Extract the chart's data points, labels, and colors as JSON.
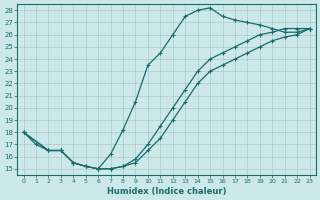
{
  "bg_color": "#cce8e8",
  "grid_color": "#aacccc",
  "line_color": "#1a6b6b",
  "xlabel": "Humidex (Indice chaleur)",
  "xlim": [
    -0.5,
    23.5
  ],
  "ylim": [
    14.5,
    28.5
  ],
  "xticks": [
    0,
    1,
    2,
    3,
    4,
    5,
    6,
    7,
    8,
    9,
    10,
    11,
    12,
    13,
    14,
    15,
    16,
    17,
    18,
    19,
    20,
    21,
    22,
    23
  ],
  "yticks": [
    15,
    16,
    17,
    18,
    19,
    20,
    21,
    22,
    23,
    24,
    25,
    26,
    27,
    28
  ],
  "line1_x": [
    0,
    1,
    2,
    3,
    4,
    5,
    6,
    7,
    8,
    9,
    10,
    11,
    12,
    13,
    14,
    15,
    16,
    17,
    18,
    19,
    20,
    21,
    22,
    23
  ],
  "line1_y": [
    18.0,
    17.0,
    16.5,
    16.5,
    15.5,
    15.2,
    15.0,
    16.2,
    18.2,
    20.5,
    23.5,
    24.5,
    26.0,
    27.5,
    28.0,
    28.2,
    27.5,
    27.2,
    27.0,
    26.8,
    26.5,
    26.2,
    26.2,
    26.5
  ],
  "line2_x": [
    0,
    2,
    3,
    4,
    5,
    6,
    7,
    8,
    9,
    10,
    11,
    12,
    13,
    14,
    15,
    16,
    17,
    18,
    19,
    20,
    21,
    22,
    23
  ],
  "line2_y": [
    18.0,
    16.5,
    16.5,
    15.5,
    15.2,
    15.0,
    15.0,
    15.2,
    15.8,
    17.0,
    18.5,
    20.0,
    21.5,
    23.0,
    24.0,
    24.5,
    25.0,
    25.5,
    26.0,
    26.2,
    26.5,
    26.5,
    26.5
  ],
  "line3_x": [
    0,
    2,
    3,
    4,
    5,
    6,
    7,
    8,
    9,
    10,
    11,
    12,
    13,
    14,
    15,
    16,
    17,
    18,
    19,
    20,
    21,
    22,
    23
  ],
  "line3_y": [
    18.0,
    16.5,
    16.5,
    15.5,
    15.2,
    15.0,
    15.0,
    15.2,
    15.5,
    16.5,
    17.5,
    19.0,
    20.5,
    22.0,
    23.0,
    23.5,
    24.0,
    24.5,
    25.0,
    25.5,
    25.8,
    26.0,
    26.5
  ]
}
